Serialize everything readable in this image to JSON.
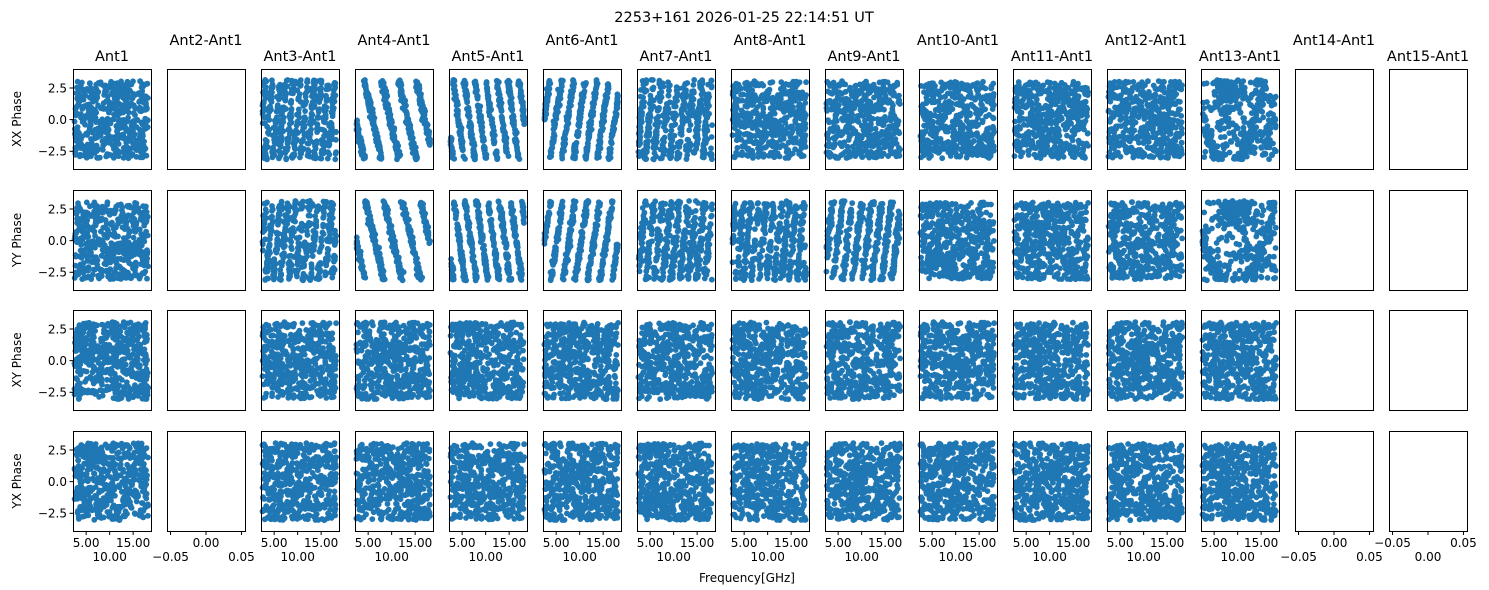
{
  "chart_data": {
    "type": "scatter",
    "title": "2253+161 2026-01-25 22:14:51 UT",
    "xlabel": "Frequency[GHz]",
    "point_color": "#1f77b4",
    "columns": [
      "Ant1",
      "Ant2-Ant1",
      "Ant3-Ant1",
      "Ant4-Ant1",
      "Ant5-Ant1",
      "Ant6-Ant1",
      "Ant7-Ant1",
      "Ant8-Ant1",
      "Ant9-Ant1",
      "Ant10-Ant1",
      "Ant11-Ant1",
      "Ant12-Ant1",
      "Ant13-Ant1",
      "Ant14-Ant1",
      "Ant15-Ant1"
    ],
    "rows": [
      "XX Phase",
      "YY Phase",
      "XY Phase",
      "YX Phase"
    ],
    "xlim": [
      2.2,
      18.8
    ],
    "ylim": [
      -3.9,
      4.0
    ],
    "empty_xlim": [
      -0.055,
      0.055
    ],
    "yticks": [
      {
        "v": 2.5,
        "label": "2.5"
      },
      {
        "v": 0,
        "label": "0.0"
      },
      {
        "v": -2.5,
        "label": "−2.5"
      }
    ],
    "xticks": [
      {
        "v": 5,
        "label": "5.00"
      },
      {
        "v": 10,
        "label": "10.00"
      },
      {
        "v": 15,
        "label": "15.00"
      }
    ],
    "empty_xticks": [
      {
        "v": -0.05,
        "label": "−0.05"
      },
      {
        "v": 0,
        "label": "0.00"
      },
      {
        "v": 0.05,
        "label": "0.05"
      }
    ],
    "freq_range_ghz": [
      2.5,
      18.2
    ],
    "phase_range": [
      -3.14159,
      3.14159
    ],
    "points_per_panel": 480,
    "empty_columns": [
      1,
      13,
      14
    ],
    "panels": {
      "0": [
        {
          "p": "u"
        },
        {
          "p": "u"
        },
        {
          "p": "u"
        },
        {
          "p": "u"
        }
      ],
      "2": [
        {
          "p": "w",
          "slope": 4.2,
          "noise": 0.9
        },
        {
          "p": "w",
          "slope": 4.0,
          "noise": 0.9
        },
        {
          "p": "u"
        },
        {
          "p": "u"
        }
      ],
      "3": [
        {
          "p": "w",
          "slope": -1.7,
          "noise": 0.35
        },
        {
          "p": "w",
          "slope": -1.6,
          "noise": 0.3
        },
        {
          "p": "u"
        },
        {
          "p": "u"
        }
      ],
      "4": [
        {
          "p": "w",
          "slope": -2.7,
          "noise": 0.35
        },
        {
          "p": "w",
          "slope": -2.6,
          "noise": 0.35
        },
        {
          "p": "u"
        },
        {
          "p": "u"
        }
      ],
      "5": [
        {
          "p": "w",
          "slope": 2.5,
          "noise": 0.35
        },
        {
          "p": "w",
          "slope": 2.4,
          "noise": 0.35
        },
        {
          "p": "u"
        },
        {
          "p": "u"
        }
      ],
      "6": [
        {
          "p": "w",
          "slope": 3.6,
          "noise": 0.9
        },
        {
          "p": "w",
          "slope": 3.5,
          "noise": 0.9
        },
        {
          "p": "u"
        },
        {
          "p": "u"
        }
      ],
      "7": [
        {
          "p": "u"
        },
        {
          "p": "w",
          "slope": 3.9,
          "noise": 0.9
        },
        {
          "p": "u"
        },
        {
          "p": "u"
        }
      ],
      "8": [
        {
          "p": "u"
        },
        {
          "p": "w",
          "slope": 3.0,
          "noise": 0.6
        },
        {
          "p": "u"
        },
        {
          "p": "u"
        }
      ],
      "9": [
        {
          "p": "u"
        },
        {
          "p": "u"
        },
        {
          "p": "u"
        },
        {
          "p": "u"
        }
      ],
      "10": [
        {
          "p": "u"
        },
        {
          "p": "u"
        },
        {
          "p": "u"
        },
        {
          "p": "u"
        }
      ],
      "11": [
        {
          "p": "u"
        },
        {
          "p": "u"
        },
        {
          "p": "u"
        },
        {
          "p": "u"
        }
      ],
      "12": [
        {
          "p": "c",
          "center": 8.0,
          "curv": 0.12,
          "noise": 0.5
        },
        {
          "p": "c",
          "center": 9.5,
          "curv": 0.1,
          "noise": 0.45
        },
        {
          "p": "u"
        },
        {
          "p": "u"
        }
      ]
    }
  }
}
